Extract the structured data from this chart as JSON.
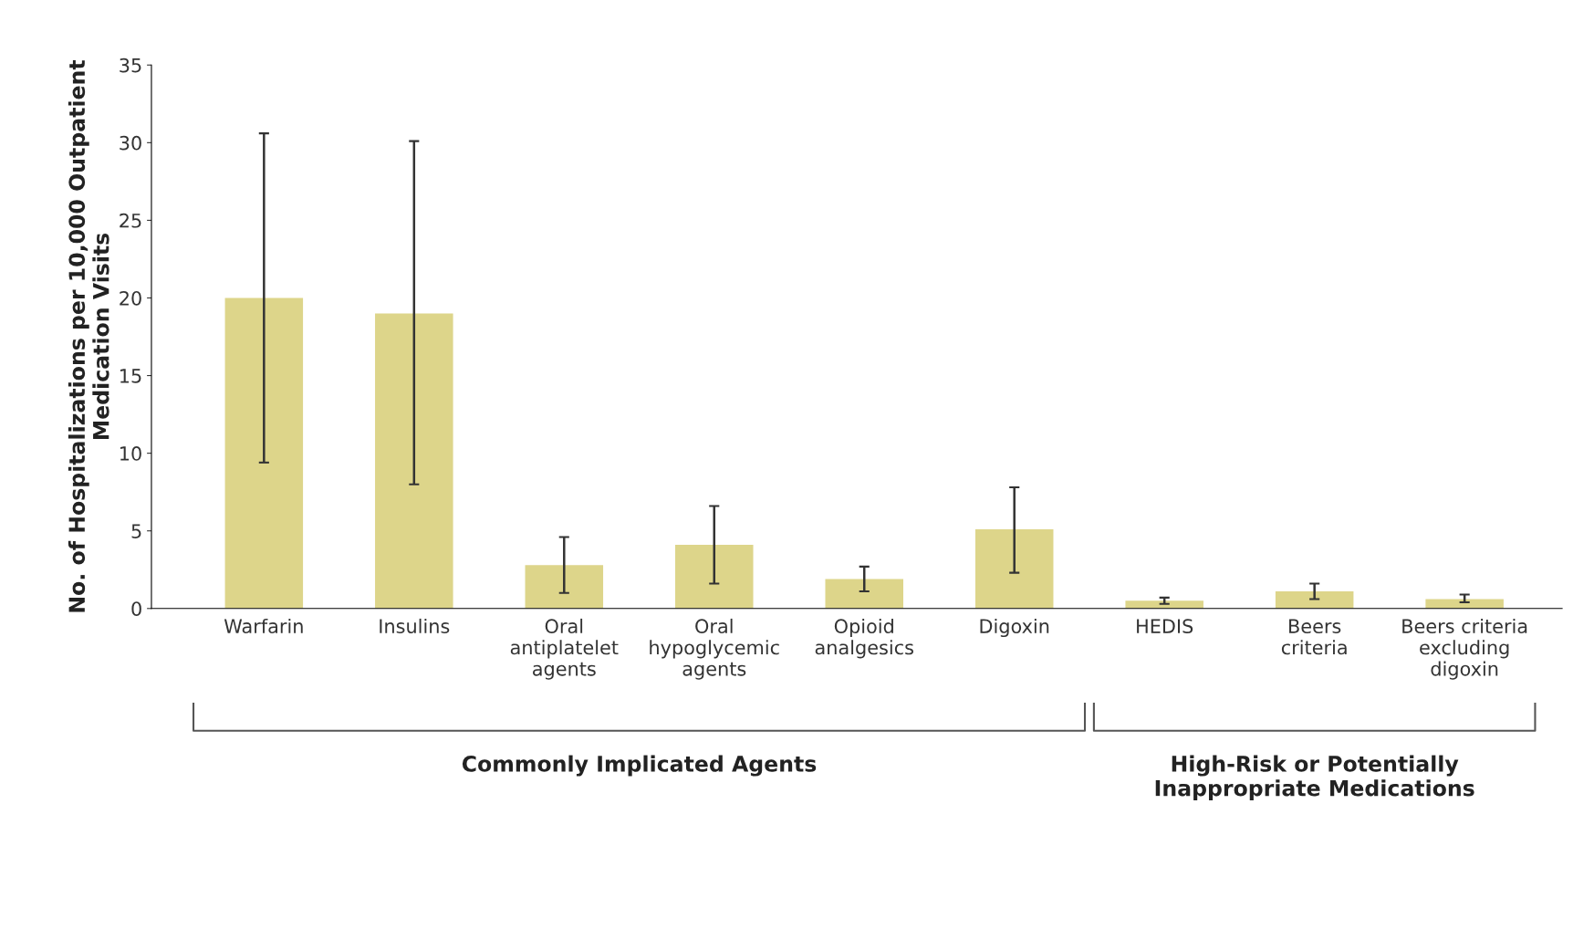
{
  "chart_data": {
    "type": "bar",
    "ylabel": "No. of Hospitalizations per 10,000 Outpatient\nMedication Visits",
    "categories": [
      "Warfarin",
      "Insulins",
      "Oral\nantiplatelet\nagents",
      "Oral\nhypoglycemic\nagents",
      "Opioid\nanalgesics",
      "Digoxin",
      "HEDIS",
      "Beers\ncriteria",
      "Beers criteria\nexcluding\ndigoxin"
    ],
    "values": [
      20.0,
      19.0,
      2.8,
      4.1,
      1.9,
      5.1,
      0.5,
      1.1,
      0.6
    ],
    "errors": [
      [
        9.4,
        30.6
      ],
      [
        8.0,
        30.1
      ],
      [
        1.0,
        4.6
      ],
      [
        1.6,
        6.6
      ],
      [
        1.1,
        2.7
      ],
      [
        2.3,
        7.8
      ],
      [
        0.3,
        0.7
      ],
      [
        0.6,
        1.6
      ],
      [
        0.4,
        0.9
      ]
    ],
    "color": "#ddd58a",
    "ylim": [
      0,
      35
    ],
    "yticks": [
      0,
      5,
      10,
      15,
      20,
      25,
      30,
      35
    ],
    "grid": false,
    "legend": false,
    "annotations": [
      "Commonly Implicated Agents",
      "High-Risk or Potentially\nInappropriate Medications"
    ]
  }
}
